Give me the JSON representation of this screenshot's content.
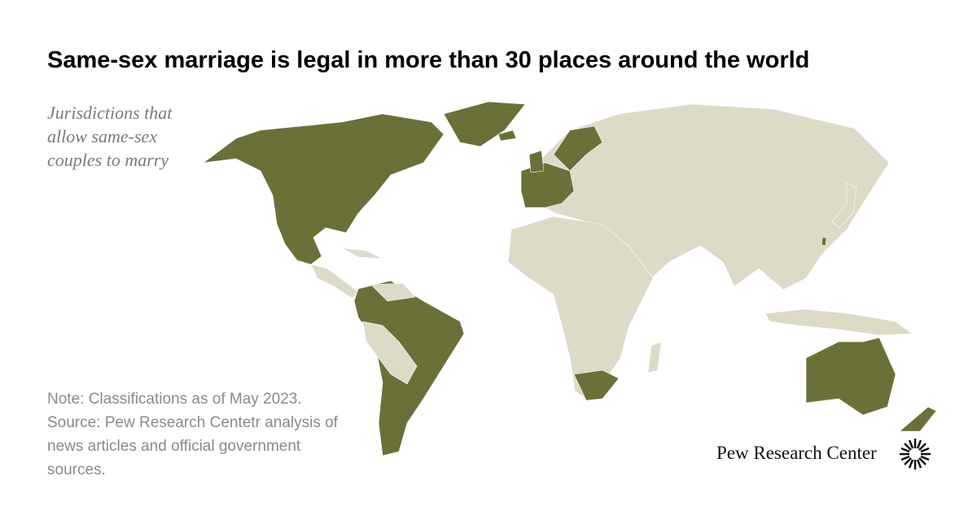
{
  "title": "Same-sex marriage is legal in more than 30 places around the world",
  "subtitle_lines": [
    "Jurisdictions that",
    "allow same-sex",
    "couples to marry"
  ],
  "note": "Note: Classifications as of May 2023.",
  "source": "Source: Pew Research Centetr analysis of news articles and official government sources.",
  "logo": "Pew Research Center"
}
